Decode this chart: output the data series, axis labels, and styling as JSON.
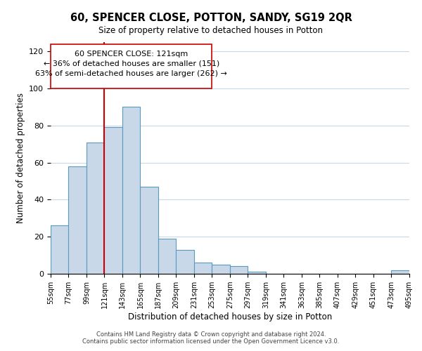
{
  "title": "60, SPENCER CLOSE, POTTON, SANDY, SG19 2QR",
  "subtitle": "Size of property relative to detached houses in Potton",
  "xlabel": "Distribution of detached houses by size in Potton",
  "ylabel": "Number of detached properties",
  "bar_color": "#c8d8e8",
  "bar_edge_color": "#5a9abf",
  "grid_color": "#c8d8e8",
  "annotation_box_edge_color": "#cc0000",
  "vline_color": "#cc0000",
  "footer1": "Contains HM Land Registry data © Crown copyright and database right 2024.",
  "footer2": "Contains public sector information licensed under the Open Government Licence v3.0.",
  "annotation_line1": "60 SPENCER CLOSE: 121sqm",
  "annotation_line2": "← 36% of detached houses are smaller (151)",
  "annotation_line3": "63% of semi-detached houses are larger (262) →",
  "property_size": 121,
  "bin_edges": [
    55,
    77,
    99,
    121,
    143,
    165,
    187,
    209,
    231,
    253,
    275,
    297,
    319,
    341,
    363,
    385,
    407,
    429,
    451,
    473,
    495
  ],
  "counts": [
    26,
    58,
    71,
    79,
    90,
    47,
    19,
    13,
    6,
    5,
    4,
    1,
    0,
    0,
    0,
    0,
    0,
    0,
    0,
    2
  ],
  "ylim": [
    0,
    125
  ],
  "yticks": [
    0,
    20,
    40,
    60,
    80,
    100,
    120
  ],
  "tick_labels": [
    "55sqm",
    "77sqm",
    "99sqm",
    "121sqm",
    "143sqm",
    "165sqm",
    "187sqm",
    "209sqm",
    "231sqm",
    "253sqm",
    "275sqm",
    "297sqm",
    "319sqm",
    "341sqm",
    "363sqm",
    "385sqm",
    "407sqm",
    "429sqm",
    "451sqm",
    "473sqm",
    "495sqm"
  ]
}
